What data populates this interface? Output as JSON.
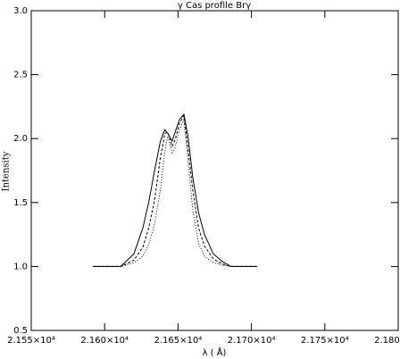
{
  "chart_data": {
    "type": "line",
    "title": "γ Cas profile Brγ",
    "x_label": "λ ( Å)",
    "y_label": "Intensity",
    "x": [
      21592,
      21611,
      21620,
      21626,
      21630,
      21634,
      21638,
      21641,
      21643,
      21646,
      21648,
      21651,
      21654,
      21657,
      21660,
      21664,
      21668,
      21674,
      21680,
      21686,
      21704
    ],
    "series": [
      {
        "color": "#000000",
        "dash": "solid",
        "values": [
          1.0,
          1.0,
          1.1,
          1.3,
          1.5,
          1.75,
          1.98,
          2.07,
          2.04,
          1.98,
          2.05,
          2.15,
          2.19,
          2.0,
          1.7,
          1.42,
          1.25,
          1.1,
          1.04,
          1.0,
          1.0
        ]
      },
      {
        "color": "#000000",
        "dash": "dashed",
        "values": [
          1.0,
          1.0,
          1.05,
          1.15,
          1.3,
          1.52,
          1.85,
          2.04,
          2.05,
          1.94,
          1.99,
          2.12,
          2.18,
          1.9,
          1.6,
          1.3,
          1.16,
          1.06,
          1.02,
          1.0,
          1.0
        ]
      },
      {
        "color": "#000000",
        "dash": "dotted",
        "values": [
          1.0,
          1.0,
          1.03,
          1.08,
          1.17,
          1.33,
          1.6,
          1.9,
          2.02,
          1.89,
          1.93,
          2.07,
          2.15,
          1.8,
          1.45,
          1.18,
          1.08,
          1.03,
          1.01,
          1.0,
          1.0
        ]
      }
    ],
    "xlim": [
      21550,
      21800
    ],
    "xticks": [
      {
        "value": 21550,
        "label": "2.155×10⁴"
      },
      {
        "value": 21600,
        "label": "2.160×10⁴"
      },
      {
        "value": 21650,
        "label": "2.165×10⁴"
      },
      {
        "value": 21700,
        "label": "2.170×10⁴"
      },
      {
        "value": 21750,
        "label": "2.175×10⁴"
      },
      {
        "value": 21800,
        "label": "2.180×10⁴"
      }
    ],
    "ylim": [
      0.5,
      3.0
    ],
    "yticks": [
      0.5,
      {
        "value": 1.0,
        "label": "1.0"
      },
      1.5,
      {
        "value": 2.0,
        "label": "2.0"
      },
      2.5,
      {
        "value": 3.0,
        "label": "3.0"
      }
    ]
  }
}
